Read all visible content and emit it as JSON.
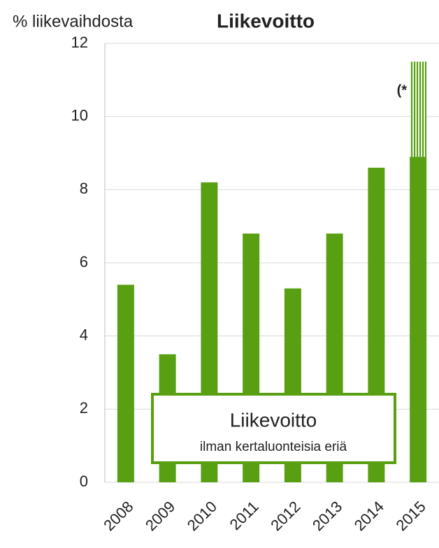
{
  "chart_data": {
    "type": "bar",
    "stacked": true,
    "y_label": "% liikevaihdosta",
    "title": "Liikevoitto",
    "categories": [
      "2008",
      "2009",
      "2010",
      "2011",
      "2012",
      "2013",
      "2014",
      "2015"
    ],
    "series": [
      {
        "name": "Liikevoitto",
        "color": "#58a012",
        "values": [
          5.4,
          3.5,
          8.2,
          6.8,
          5.3,
          6.8,
          8.6,
          8.9
        ]
      },
      {
        "name": "ilman kertaluonteisia eriä",
        "color": "#58a012",
        "pattern": "vertical-hatch",
        "values": [
          null,
          null,
          null,
          null,
          null,
          null,
          null,
          2.6
        ]
      }
    ],
    "annotation": "(*",
    "ylim": [
      0,
      12
    ],
    "yticks": [
      0,
      2,
      4,
      6,
      8,
      10,
      12
    ],
    "grid": true
  }
}
